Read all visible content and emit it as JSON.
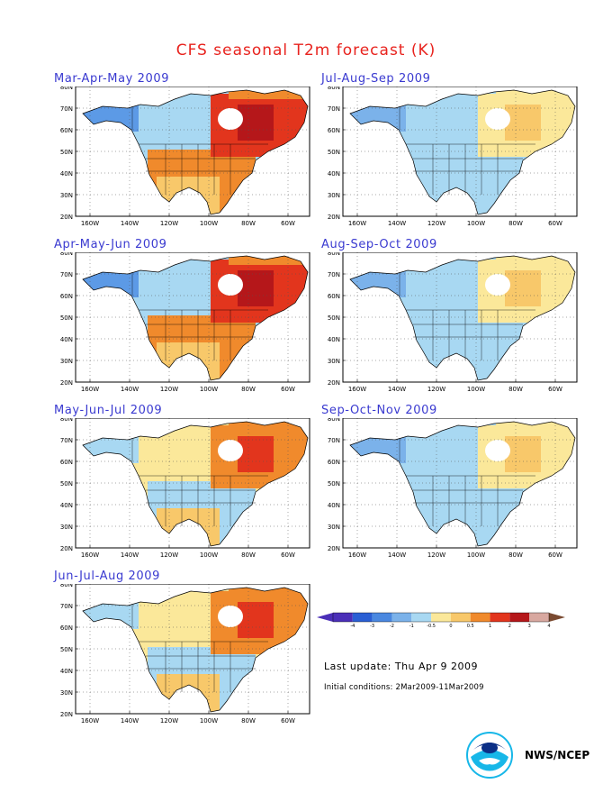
{
  "title": "CFS seasonal T2m forecast (K)",
  "panels": [
    {
      "id": "mam",
      "title": "Mar-Apr-May 2009",
      "pattern": "warm_east"
    },
    {
      "id": "jas",
      "title": "Jul-Aug-Sep 2009",
      "pattern": "mild"
    },
    {
      "id": "amj",
      "title": "Apr-May-Jun 2009",
      "pattern": "warm_east"
    },
    {
      "id": "aso",
      "title": "Aug-Sep-Oct 2009",
      "pattern": "mild"
    },
    {
      "id": "mjj",
      "title": "May-Jun-Jul 2009",
      "pattern": "moderate"
    },
    {
      "id": "son",
      "title": "Sep-Oct-Nov 2009",
      "pattern": "mild"
    },
    {
      "id": "jja",
      "title": "Jun-Jul-Aug 2009",
      "pattern": "moderate"
    }
  ],
  "axes": {
    "lat_labels": [
      "80N",
      "70N",
      "60N",
      "50N",
      "40N",
      "30N",
      "20N"
    ],
    "lon_labels": [
      "160W",
      "140W",
      "120W",
      "100W",
      "80W",
      "60W"
    ]
  },
  "legend": {
    "labels": [
      "-4",
      "-3",
      "-2",
      "-1",
      "-0.5",
      "0",
      "0.5",
      "1",
      "2",
      "3",
      "4"
    ],
    "colors": [
      "#4b2fb8",
      "#2a5fd4",
      "#4a88e0",
      "#7bb2ea",
      "#a8d8f2",
      "#fbe89a",
      "#f8c86a",
      "#f08a2c",
      "#e2351d",
      "#b5171a",
      "#d8a8a0"
    ],
    "end_left": "#4b2fb8",
    "end_right": "#7a4a30"
  },
  "footer": {
    "last_update": "Last update: Thu Apr  9 2009",
    "initial_conditions": "Initial conditions: 2Mar2009-11Mar2009",
    "org": "NWS/NCEP"
  }
}
